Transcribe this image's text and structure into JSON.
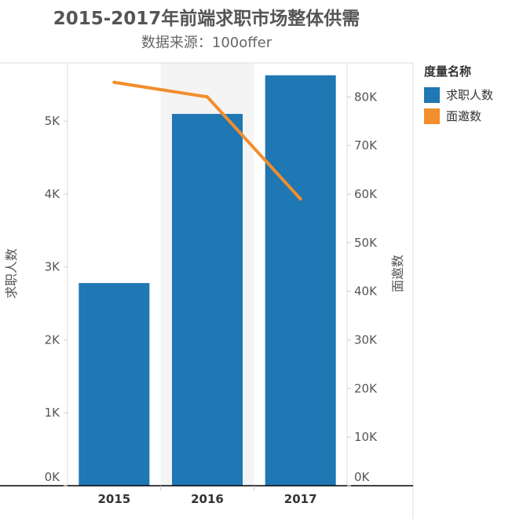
{
  "title": "2015-2017年前端求职市场整体供需",
  "subtitle": "数据来源：100offer",
  "legend": {
    "title": "度量名称",
    "items": [
      {
        "label": "求职人数",
        "color": "#1f77b4"
      },
      {
        "label": "面邀数",
        "color": "#f28e2b"
      }
    ]
  },
  "chart_data": {
    "type": "bar",
    "categories": [
      "2015",
      "2016",
      "2017"
    ],
    "series": [
      {
        "name": "求职人数",
        "type": "bar",
        "axis": "left",
        "color": "#1f77b4",
        "values": [
          2780,
          5100,
          5630
        ]
      },
      {
        "name": "面邀数",
        "type": "line",
        "axis": "right",
        "color": "#f28e2b",
        "values": [
          83000,
          80000,
          59000
        ]
      }
    ],
    "ylabel": "求职人数",
    "ylabel_right": "面邀数",
    "ylim": [
      0,
      5800
    ],
    "ylim_right": [
      0,
      87000
    ],
    "yticks": [
      0,
      1000,
      2000,
      3000,
      4000,
      5000
    ],
    "yticks_labels": [
      "0K",
      "1K",
      "2K",
      "3K",
      "4K",
      "5K"
    ],
    "yticks_right": [
      0,
      10000,
      20000,
      30000,
      40000,
      50000,
      60000,
      70000,
      80000
    ],
    "yticks_right_labels": [
      "0K",
      "10K",
      "20K",
      "30K",
      "40K",
      "50K",
      "60K",
      "70K",
      "80K"
    ],
    "highlight_category": "2016",
    "grid": false,
    "legend_position": "top-right"
  }
}
